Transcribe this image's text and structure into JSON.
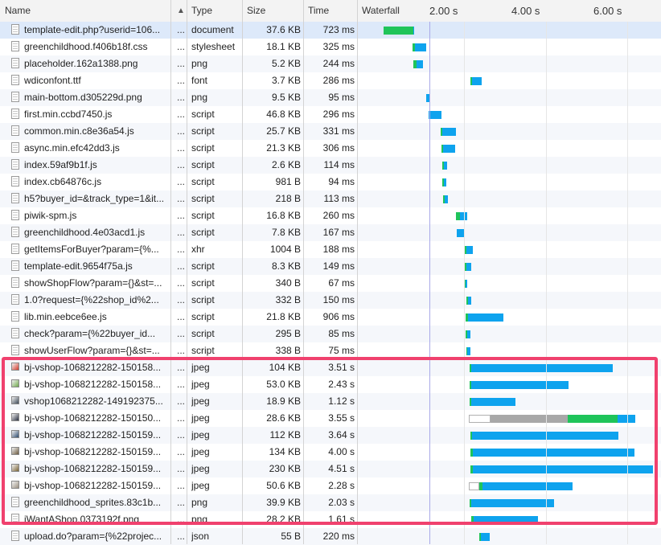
{
  "columns": {
    "name": "Name",
    "type": "Type",
    "size": "Size",
    "time": "Time",
    "waterfall": "Waterfall"
  },
  "waterfall_ticks": [
    "2.00 s",
    "4.00 s",
    "6.00 s"
  ],
  "rows": [
    {
      "name": "template-edit.php?userid=106...",
      "dots": "...",
      "type": "document",
      "size": "37.6 KB",
      "time": "723 ms"
    },
    {
      "name": "greenchildhood.f406b18f.css",
      "dots": "...",
      "type": "stylesheet",
      "size": "18.1 KB",
      "time": "325 ms"
    },
    {
      "name": "placeholder.162a1388.png",
      "dots": "...",
      "type": "png",
      "size": "5.2 KB",
      "time": "244 ms"
    },
    {
      "name": "wdiconfont.ttf",
      "dots": "...",
      "type": "font",
      "size": "3.7 KB",
      "time": "286 ms"
    },
    {
      "name": "main-bottom.d305229d.png",
      "dots": "...",
      "type": "png",
      "size": "9.5 KB",
      "time": "95 ms"
    },
    {
      "name": "first.min.ccbd7450.js",
      "dots": "...",
      "type": "script",
      "size": "46.8 KB",
      "time": "296 ms"
    },
    {
      "name": "common.min.c8e36a54.js",
      "dots": "...",
      "type": "script",
      "size": "25.7 KB",
      "time": "331 ms"
    },
    {
      "name": "async.min.efc42dd3.js",
      "dots": "...",
      "type": "script",
      "size": "21.3 KB",
      "time": "306 ms"
    },
    {
      "name": "index.59af9b1f.js",
      "dots": "...",
      "type": "script",
      "size": "2.6 KB",
      "time": "114 ms"
    },
    {
      "name": "index.cb64876c.js",
      "dots": "...",
      "type": "script",
      "size": "981 B",
      "time": "94 ms"
    },
    {
      "name": "h5?buyer_id=&track_type=1&it...",
      "dots": "...",
      "type": "script",
      "size": "218 B",
      "time": "113 ms"
    },
    {
      "name": "piwik-spm.js",
      "dots": "...",
      "type": "script",
      "size": "16.8 KB",
      "time": "260 ms"
    },
    {
      "name": "greenchildhood.4e03acd1.js",
      "dots": "...",
      "type": "script",
      "size": "7.8 KB",
      "time": "167 ms"
    },
    {
      "name": "getItemsForBuyer?param={%...",
      "dots": "...",
      "type": "xhr",
      "size": "1004 B",
      "time": "188 ms"
    },
    {
      "name": "template-edit.9654f75a.js",
      "dots": "...",
      "type": "script",
      "size": "8.3 KB",
      "time": "149 ms"
    },
    {
      "name": "showShopFlow?param={}&st=...",
      "dots": "...",
      "type": "script",
      "size": "340 B",
      "time": "67 ms"
    },
    {
      "name": "1.0?request={%22shop_id%2...",
      "dots": "...",
      "type": "script",
      "size": "332 B",
      "time": "150 ms"
    },
    {
      "name": "lib.min.eebce6ee.js",
      "dots": "...",
      "type": "script",
      "size": "21.8 KB",
      "time": "906 ms"
    },
    {
      "name": "check?param={%22buyer_id...",
      "dots": "...",
      "type": "script",
      "size": "295 B",
      "time": "85 ms"
    },
    {
      "name": "showUserFlow?param={}&st=...",
      "dots": "...",
      "type": "script",
      "size": "338 B",
      "time": "75 ms"
    },
    {
      "name": "bj-vshop-1068212282-150158...",
      "dots": "...",
      "type": "jpeg",
      "size": "104 KB",
      "time": "3.51 s"
    },
    {
      "name": "bj-vshop-1068212282-150158...",
      "dots": "...",
      "type": "jpeg",
      "size": "53.0 KB",
      "time": "2.43 s"
    },
    {
      "name": "vshop1068212282-149192375...",
      "dots": "...",
      "type": "jpeg",
      "size": "18.9 KB",
      "time": "1.12 s"
    },
    {
      "name": "bj-vshop-1068212282-150150...",
      "dots": "...",
      "type": "jpeg",
      "size": "28.6 KB",
      "time": "3.55 s"
    },
    {
      "name": "bj-vshop-1068212282-150159...",
      "dots": "...",
      "type": "jpeg",
      "size": "112 KB",
      "time": "3.64 s"
    },
    {
      "name": "bj-vshop-1068212282-150159...",
      "dots": "...",
      "type": "jpeg",
      "size": "134 KB",
      "time": "4.00 s"
    },
    {
      "name": "bj-vshop-1068212282-150159...",
      "dots": "...",
      "type": "jpeg",
      "size": "230 KB",
      "time": "4.51 s"
    },
    {
      "name": "bj-vshop-1068212282-150159...",
      "dots": "...",
      "type": "jpeg",
      "size": "50.6 KB",
      "time": "2.28 s"
    },
    {
      "name": "greenchildhood_sprites.83c1b...",
      "dots": "...",
      "type": "png",
      "size": "39.9 KB",
      "time": "2.03 s"
    },
    {
      "name": "iWantAShop.0373192f.png",
      "dots": "...",
      "type": "png",
      "size": "28.2 KB",
      "time": "1.61 s"
    },
    {
      "name": "upload.do?param={%22projec...",
      "dots": "...",
      "type": "json",
      "size": "55 B",
      "time": "220 ms"
    }
  ],
  "colors": {
    "waiting": "#1fc45a",
    "download": "#0ea3ee",
    "stalled": "#a8a8a8",
    "queue": "#ffffff",
    "highlight": "#f0416e"
  }
}
